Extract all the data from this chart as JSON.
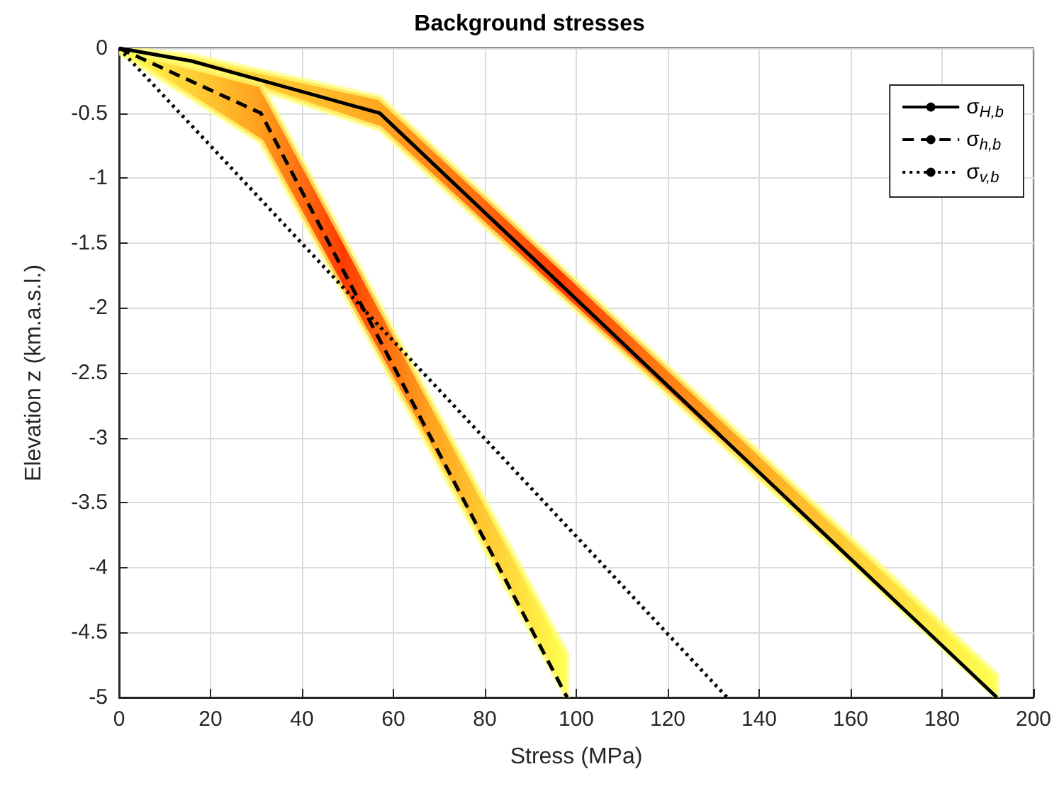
{
  "chart_data": {
    "type": "line",
    "title": "Background stresses",
    "xlabel": "Stress (MPa)",
    "ylabel": "Elevation z (km.a.s.l.)",
    "xlim": [
      0,
      200
    ],
    "xticks": [
      0,
      20,
      40,
      60,
      80,
      100,
      120,
      140,
      160,
      180,
      200
    ],
    "ylim": [
      -5,
      0
    ],
    "yticks": [
      -5,
      -4.5,
      -4,
      -3.5,
      -3,
      -2.5,
      -2,
      -1.5,
      -1,
      -0.5,
      0
    ],
    "grid": true,
    "legend": "top right",
    "marker": "none",
    "series": [
      {
        "name": "σ$_{H,b}$",
        "color": "#000000",
        "line_style": "solid",
        "x": [
          0,
          16,
          57,
          192
        ],
        "values": [
          0,
          -0.1,
          -0.5,
          -5
        ],
        "lower": [
          -0.02,
          -0.14,
          -0.62,
          -5
        ],
        "upper": [
          0,
          -0.06,
          -0.38,
          -4.83
        ]
      },
      {
        "name": "σ$_{h,b}$",
        "color": "#000000",
        "line_style": "dashed",
        "x": [
          0,
          31,
          98
        ],
        "values": [
          0,
          -0.5,
          -5
        ],
        "lower": [
          -0.03,
          -0.72,
          -5
        ],
        "upper": [
          0,
          -0.28,
          -4.67
        ]
      },
      {
        "name": "σ$_{v,b}$",
        "color": "#000000",
        "line_style": "dotted",
        "x": [
          0,
          133
        ],
        "values": [
          0,
          -5
        ]
      }
    ]
  }
}
